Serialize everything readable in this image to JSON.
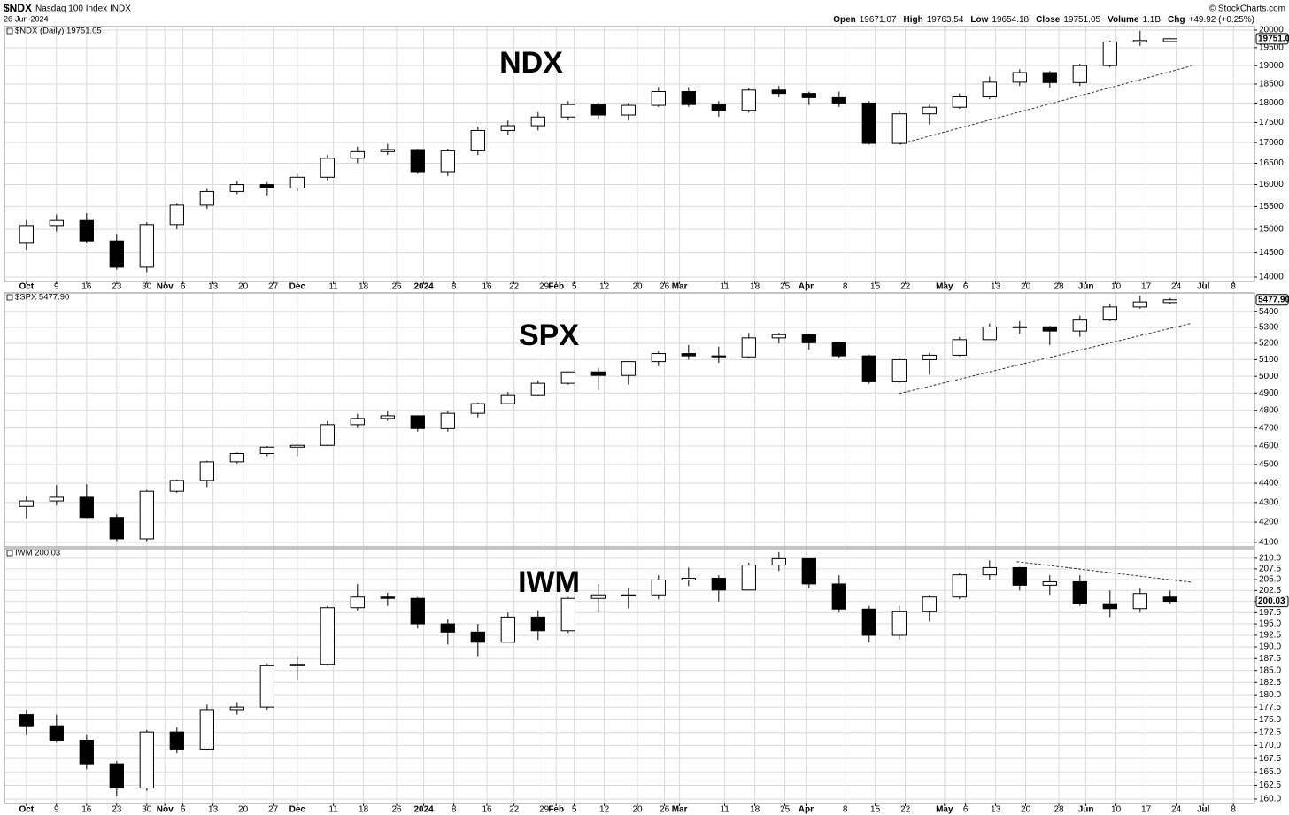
{
  "header": {
    "symbol": "$NDX",
    "name": "Nasdaq 100 Index",
    "exchange": "INDX",
    "date": "26-Jun-2024",
    "copyright": "© StockCharts.com",
    "quote": [
      {
        "label": "Open",
        "value": 19671.07
      },
      {
        "label": "High",
        "value": 19763.54
      },
      {
        "label": "Low",
        "value": 19654.18
      },
      {
        "label": "Close",
        "value": 19751.05
      },
      {
        "label": "Volume",
        "value": "1.1B"
      },
      {
        "label": "Chg",
        "value": "+49.92 (+0.25%)"
      }
    ]
  },
  "chart_data": [
    {
      "type": "candlestick",
      "title": "NDX",
      "legend": "$NDX (Daily) 19751.05",
      "last_label": "19751.0",
      "log": true,
      "grid": true,
      "up_color": "#ffffff",
      "down_color": "#000000",
      "xlim": [
        -0.73,
        40.8
      ],
      "xticks": [
        {
          "value": 0,
          "label": "Oct"
        },
        {
          "value": 1,
          "label": "9"
        },
        {
          "value": 2,
          "label": "16"
        },
        {
          "value": 3,
          "label": "23"
        },
        {
          "value": 4,
          "label": "30"
        },
        {
          "value": 4.6,
          "label": "Nov"
        },
        {
          "value": 5.2,
          "label": "6"
        },
        {
          "value": 6.2,
          "label": "13"
        },
        {
          "value": 7.2,
          "label": "20"
        },
        {
          "value": 8.2,
          "label": "27"
        },
        {
          "value": 9,
          "label": "Dec"
        },
        {
          "value": 10.2,
          "label": "11"
        },
        {
          "value": 11.2,
          "label": "18"
        },
        {
          "value": 12.3,
          "label": "26"
        },
        {
          "value": 13.2,
          "label": "2024"
        },
        {
          "value": 14.2,
          "label": "8"
        },
        {
          "value": 15.3,
          "label": "16"
        },
        {
          "value": 16.2,
          "label": "22"
        },
        {
          "value": 17.2,
          "label": "29"
        },
        {
          "value": 17.6,
          "label": "Feb"
        },
        {
          "value": 18.2,
          "label": "5"
        },
        {
          "value": 19.2,
          "label": "12"
        },
        {
          "value": 20.3,
          "label": "20"
        },
        {
          "value": 21.2,
          "label": "26"
        },
        {
          "value": 21.7,
          "label": "Mar"
        },
        {
          "value": 23.2,
          "label": "11"
        },
        {
          "value": 24.2,
          "label": "18"
        },
        {
          "value": 25.2,
          "label": "25"
        },
        {
          "value": 25.9,
          "label": "Apr"
        },
        {
          "value": 27.2,
          "label": "8"
        },
        {
          "value": 28.2,
          "label": "15"
        },
        {
          "value": 29.2,
          "label": "22"
        },
        {
          "value": 30.5,
          "label": "May"
        },
        {
          "value": 31.2,
          "label": "6"
        },
        {
          "value": 32.2,
          "label": "13"
        },
        {
          "value": 33.2,
          "label": "20"
        },
        {
          "value": 34.3,
          "label": "28"
        },
        {
          "value": 35.2,
          "label": "Jun"
        },
        {
          "value": 36.2,
          "label": "10"
        },
        {
          "value": 37.2,
          "label": "17"
        },
        {
          "value": 38.2,
          "label": "24"
        },
        {
          "value": 39.1,
          "label": "Jul"
        },
        {
          "value": 40.1,
          "label": "8"
        }
      ],
      "ylim": [
        13911,
        20103
      ],
      "yticks": [
        14000,
        14500,
        15000,
        15500,
        16000,
        16500,
        17000,
        17500,
        18000,
        18500,
        19000,
        19500,
        20000
      ],
      "open": [
        14700,
        15080,
        15190,
        14750,
        14200,
        15100,
        15530,
        15840,
        16000,
        15920,
        16170,
        16620,
        16780,
        16830,
        16300,
        16800,
        17300,
        17420,
        17640,
        17960,
        17690,
        17940,
        18300,
        17960,
        17810,
        18340,
        18250,
        18140,
        18000,
        16980,
        17720,
        17890,
        18160,
        18550,
        18810,
        18540,
        19000,
        19660,
        19671.07
      ],
      "high": [
        15200,
        15320,
        15350,
        14900,
        15150,
        15580,
        15900,
        16080,
        16050,
        16250,
        16700,
        16900,
        16970,
        16850,
        16850,
        17400,
        17550,
        17760,
        18050,
        18000,
        18000,
        18420,
        18420,
        18050,
        18400,
        18450,
        18300,
        18300,
        18050,
        17800,
        17950,
        18250,
        18700,
        18900,
        18850,
        19050,
        19700,
        19980,
        19763.54
      ],
      "low": [
        14550,
        14950,
        14700,
        14150,
        14100,
        15000,
        15450,
        15780,
        15750,
        15850,
        16100,
        16500,
        16700,
        16250,
        16200,
        16700,
        17200,
        17300,
        17550,
        17600,
        17550,
        17900,
        17900,
        17650,
        17750,
        18150,
        17950,
        17900,
        16950,
        16970,
        17450,
        17850,
        18100,
        18450,
        18400,
        18450,
        18950,
        19550,
        19654.18
      ],
      "close": [
        15080,
        15190,
        14750,
        14200,
        15100,
        15530,
        15840,
        16000,
        15920,
        16170,
        16620,
        16780,
        16830,
        16300,
        16800,
        17300,
        17420,
        17640,
        17960,
        17690,
        17940,
        18300,
        17960,
        17810,
        18340,
        18250,
        18140,
        18000,
        16980,
        17720,
        17890,
        18160,
        18550,
        18810,
        18540,
        19000,
        19660,
        19700,
        19751.05
      ],
      "trendline": {
        "x": [
          29.0,
          38.7
        ],
        "y": [
          16960,
          18990
        ]
      }
    },
    {
      "type": "candlestick",
      "title": "SPX",
      "legend": "$SPX 5477.90",
      "last_label": "5477.90",
      "log": true,
      "grid": true,
      "up_color": "#ffffff",
      "down_color": "#000000",
      "xlim": [
        -0.73,
        40.8
      ],
      "ylim": [
        4078,
        5523
      ],
      "yticks": [
        4100,
        4200,
        4300,
        4400,
        4500,
        4600,
        4700,
        4800,
        4900,
        5000,
        5100,
        5200,
        5300,
        5400
      ],
      "open": [
        4280,
        4308,
        4327,
        4224,
        4117,
        4358,
        4415,
        4514,
        4559,
        4594,
        4604,
        4719,
        4754,
        4769,
        4697,
        4783,
        4839,
        4890,
        4958,
        5026,
        5005,
        5088,
        5137,
        5123,
        5117,
        5234,
        5254,
        5204,
        5123,
        4967,
        5100,
        5127,
        5223,
        5303,
        5304,
        5277,
        5347,
        5431,
        5460
      ],
      "high": [
        4335,
        4390,
        4395,
        4240,
        4365,
        4420,
        4520,
        4565,
        4600,
        4610,
        4740,
        4780,
        4795,
        4770,
        4800,
        4845,
        4905,
        4975,
        5030,
        5050,
        5090,
        5150,
        5190,
        5180,
        5265,
        5265,
        5260,
        5210,
        5130,
        5110,
        5140,
        5240,
        5325,
        5340,
        5310,
        5375,
        5450,
        5505,
        5490
      ],
      "low": [
        4220,
        4285,
        4220,
        4105,
        4105,
        4350,
        4380,
        4505,
        4545,
        4545,
        4600,
        4700,
        4740,
        4680,
        4680,
        4760,
        4840,
        4880,
        4950,
        4920,
        4950,
        5060,
        5100,
        5080,
        5110,
        5200,
        5160,
        5110,
        4955,
        4960,
        5010,
        5120,
        5220,
        5260,
        5190,
        5240,
        5340,
        5420,
        5450
      ],
      "close": [
        4308,
        4327,
        4224,
        4117,
        4358,
        4415,
        4514,
        4559,
        4594,
        4604,
        4719,
        4754,
        4769,
        4697,
        4783,
        4839,
        4890,
        4958,
        5026,
        5005,
        5088,
        5137,
        5123,
        5117,
        5234,
        5254,
        5204,
        5123,
        4967,
        5100,
        5127,
        5223,
        5303,
        5304,
        5277,
        5347,
        5431,
        5464,
        5477.9
      ],
      "trendline": {
        "x": [
          29.0,
          38.7
        ],
        "y": [
          4897,
          5326
        ]
      }
    },
    {
      "type": "candlestick",
      "title": "IWM",
      "legend": "IWM 200.03",
      "last_label": "200.03",
      "log": true,
      "grid": true,
      "up_color": "#ffffff",
      "down_color": "#000000",
      "xlim": [
        -0.73,
        40.8
      ],
      "xticks": [
        {
          "value": 0,
          "label": "Oct"
        },
        {
          "value": 1,
          "label": "9"
        },
        {
          "value": 2,
          "label": "16"
        },
        {
          "value": 3,
          "label": "23"
        },
        {
          "value": 4,
          "label": "30"
        },
        {
          "value": 4.6,
          "label": "Nov"
        },
        {
          "value": 5.2,
          "label": "6"
        },
        {
          "value": 6.2,
          "label": "13"
        },
        {
          "value": 7.2,
          "label": "20"
        },
        {
          "value": 8.2,
          "label": "27"
        },
        {
          "value": 9,
          "label": "Dec"
        },
        {
          "value": 10.2,
          "label": "11"
        },
        {
          "value": 11.2,
          "label": "18"
        },
        {
          "value": 12.3,
          "label": "26"
        },
        {
          "value": 13.2,
          "label": "2024"
        },
        {
          "value": 14.2,
          "label": "8"
        },
        {
          "value": 15.3,
          "label": "16"
        },
        {
          "value": 16.2,
          "label": "22"
        },
        {
          "value": 17.2,
          "label": "29"
        },
        {
          "value": 17.6,
          "label": "Feb"
        },
        {
          "value": 18.2,
          "label": "5"
        },
        {
          "value": 19.2,
          "label": "12"
        },
        {
          "value": 20.3,
          "label": "20"
        },
        {
          "value": 21.2,
          "label": "26"
        },
        {
          "value": 21.7,
          "label": "Mar"
        },
        {
          "value": 23.2,
          "label": "11"
        },
        {
          "value": 24.2,
          "label": "18"
        },
        {
          "value": 25.2,
          "label": "25"
        },
        {
          "value": 25.9,
          "label": "Apr"
        },
        {
          "value": 27.2,
          "label": "8"
        },
        {
          "value": 28.2,
          "label": "15"
        },
        {
          "value": 29.2,
          "label": "22"
        },
        {
          "value": 30.5,
          "label": "May"
        },
        {
          "value": 31.2,
          "label": "6"
        },
        {
          "value": 32.2,
          "label": "13"
        },
        {
          "value": 33.2,
          "label": "20"
        },
        {
          "value": 34.3,
          "label": "28"
        },
        {
          "value": 35.2,
          "label": "Jun"
        },
        {
          "value": 36.2,
          "label": "10"
        },
        {
          "value": 37.2,
          "label": "17"
        },
        {
          "value": 38.2,
          "label": "24"
        },
        {
          "value": 39.1,
          "label": "Jul"
        },
        {
          "value": 40.1,
          "label": "8"
        }
      ],
      "ylim": [
        159.2,
        212.3
      ],
      "yticks": [
        {
          "value": 160,
          "label": "160.0"
        },
        {
          "value": 162.5,
          "label": "162.5"
        },
        {
          "value": 165,
          "label": "165.0"
        },
        {
          "value": 167.5,
          "label": "167.5"
        },
        {
          "value": 170,
          "label": "170.0"
        },
        {
          "value": 172.5,
          "label": "172.5"
        },
        {
          "value": 175,
          "label": "175.0"
        },
        {
          "value": 177.5,
          "label": "177.5"
        },
        {
          "value": 180,
          "label": "180.0"
        },
        {
          "value": 182.5,
          "label": "182.5"
        },
        {
          "value": 185,
          "label": "185.0"
        },
        {
          "value": 187.5,
          "label": "187.5"
        },
        {
          "value": 190,
          "label": "190.0"
        },
        {
          "value": 192.5,
          "label": "192.5"
        },
        {
          "value": 195,
          "label": "195.0"
        },
        {
          "value": 197.5,
          "label": "197.5"
        },
        {
          "value": 200,
          "label": "200.0"
        },
        {
          "value": 202.5,
          "label": "202.5"
        },
        {
          "value": 205,
          "label": "205.0"
        },
        {
          "value": 207.5,
          "label": "207.5"
        },
        {
          "value": 210,
          "label": "210.0"
        }
      ],
      "open": [
        176,
        173.8,
        171,
        166.5,
        162,
        172.6,
        169.3,
        177,
        177.5,
        186,
        186.3,
        198.6,
        201,
        200.7,
        195,
        193.2,
        191,
        196.5,
        193.5,
        200.7,
        201.5,
        201.5,
        204.9,
        205.3,
        202.6,
        208.4,
        209.9,
        204,
        198.3,
        192.5,
        197.7,
        201,
        206.1,
        207.8,
        203.7,
        204.5,
        199.5,
        198.4,
        201
      ],
      "high": [
        177,
        176,
        172,
        167,
        173,
        173.5,
        178,
        178.5,
        186.5,
        188,
        199,
        204,
        202,
        201,
        196,
        195,
        197.5,
        198,
        201,
        204,
        203,
        206,
        207.8,
        206,
        209,
        211.5,
        210,
        206,
        199,
        199,
        201.5,
        206.5,
        209.5,
        208,
        206,
        206,
        202.5,
        203,
        202.5
      ],
      "low": [
        172,
        170.5,
        165.5,
        160.5,
        161.5,
        168.5,
        169,
        176,
        177,
        183,
        186,
        198,
        199,
        194,
        190.5,
        188,
        191,
        191.5,
        193,
        197.5,
        198.5,
        200.5,
        203.5,
        200,
        202.5,
        207,
        203,
        197.5,
        191,
        191.5,
        195.5,
        200.5,
        205,
        202.5,
        201.5,
        199,
        196.5,
        197.5,
        199.5
      ],
      "close": [
        173.8,
        171,
        166.5,
        162,
        172.6,
        169.3,
        177,
        177.5,
        186,
        186.3,
        198.6,
        201,
        200.7,
        195,
        193.2,
        191,
        196.5,
        193.5,
        200.7,
        201.5,
        201.5,
        204.9,
        205.3,
        202.6,
        208.4,
        209.9,
        204,
        198.3,
        192.5,
        197.7,
        201,
        206.1,
        207.8,
        203.7,
        204.5,
        199.5,
        198.4,
        201.8,
        200.03
      ],
      "trendline": {
        "x": [
          32.9,
          38.7
        ],
        "y": [
          209.2,
          204.4
        ]
      }
    }
  ]
}
